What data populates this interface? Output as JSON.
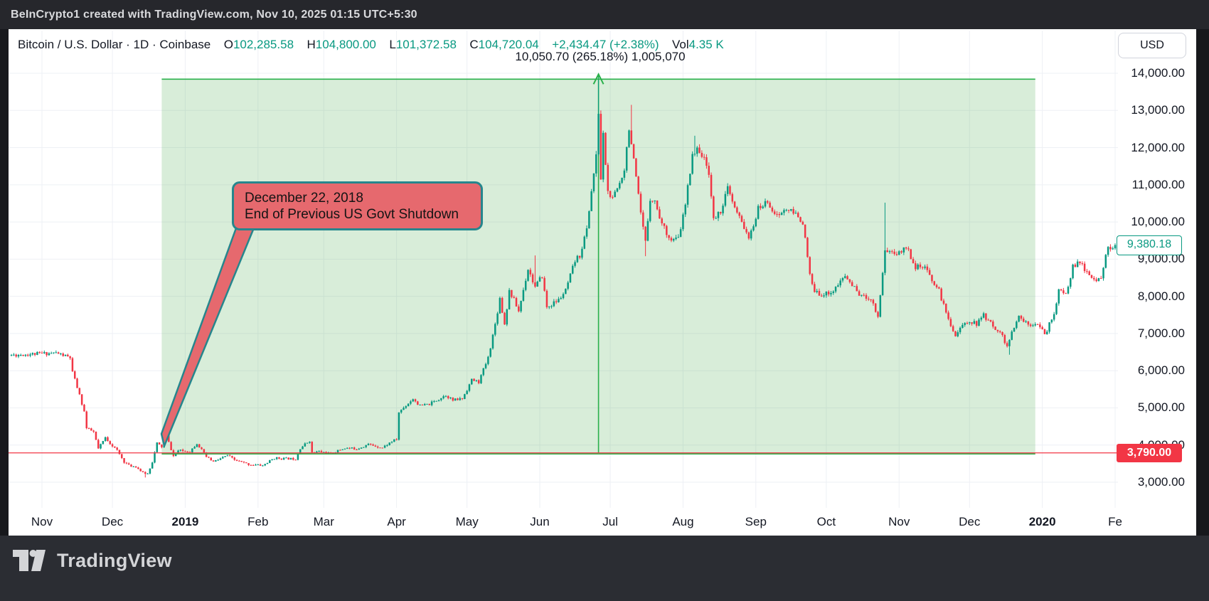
{
  "top_bar": {
    "attribution": "BeInCrypto1 created with TradingView.com, Nov 10, 2025 01:15 UTC+5:30"
  },
  "header": {
    "symbol": "Bitcoin / U.S. Dollar",
    "interval": "1D",
    "exchange": "Coinbase",
    "sep": "·",
    "o_label": "O",
    "o_value": "102,285.58",
    "h_label": "H",
    "h_value": "104,800.00",
    "l_label": "L",
    "l_value": "101,372.58",
    "c_label": "C",
    "c_value": "104,720.04",
    "change": "+2,434.47 (+2.38%)",
    "vol_label": "Vol",
    "vol_value": "4.35 K"
  },
  "measure_label": "10,050.70 (265.18%) 1,005,070",
  "currency_button": "USD",
  "callout": {
    "line1": "December 22, 2018",
    "line2": "End of Previous US Govt Shutdown"
  },
  "price_tags": {
    "current": "9,380.18",
    "anchor": "3,790.00"
  },
  "footer": {
    "brand": "TradingView"
  },
  "colors": {
    "up": "#089981",
    "down": "#f23645",
    "text": "#131722",
    "grid": "#eef0f5",
    "region_fill": "rgba(76,175,80,0.22)",
    "region_line": "#2ab04b",
    "callout_fill": "#e6696e",
    "callout_border": "#26868d"
  },
  "chart_data": {
    "type": "candlestick",
    "title": "Bitcoin / U.S. Dollar 1D Coinbase",
    "ylabel": "USD",
    "ylim": [
      2700,
      14200
    ],
    "grid": true,
    "start_date": "2018-10-19",
    "end_date": "2020-02-01",
    "last_price": 9380.18,
    "anchor_price": 3790,
    "measure_region": {
      "start_date": "2018-12-22",
      "end_date": "2019-12-29",
      "low": 3790,
      "high": 13840.7,
      "label": "10,050.70 (265.18%) 1,005,070"
    },
    "y_ticks": [
      {
        "price": 14000,
        "label": "14,000.00"
      },
      {
        "price": 13000,
        "label": "13,000.00"
      },
      {
        "price": 12000,
        "label": "12,000.00"
      },
      {
        "price": 11000,
        "label": "11,000.00"
      },
      {
        "price": 10000,
        "label": "10,000.00"
      },
      {
        "price": 9000,
        "label": "9,000.00"
      },
      {
        "price": 8000,
        "label": "8,000.00"
      },
      {
        "price": 7000,
        "label": "7,000.00"
      },
      {
        "price": 6000,
        "label": "6,000.00"
      },
      {
        "price": 5000,
        "label": "5,000.00"
      },
      {
        "price": 4000,
        "label": "4,000.00"
      },
      {
        "price": 3000,
        "label": "3,000.00"
      }
    ],
    "x_ticks": [
      {
        "date": "2018-11-01",
        "label": "Nov",
        "bold": false
      },
      {
        "date": "2018-12-01",
        "label": "Dec",
        "bold": false
      },
      {
        "date": "2019-01-01",
        "label": "2019",
        "bold": true
      },
      {
        "date": "2019-02-01",
        "label": "Feb",
        "bold": false
      },
      {
        "date": "2019-03-01",
        "label": "Mar",
        "bold": false
      },
      {
        "date": "2019-04-01",
        "label": "Apr",
        "bold": false
      },
      {
        "date": "2019-05-01",
        "label": "May",
        "bold": false
      },
      {
        "date": "2019-06-01",
        "label": "Jun",
        "bold": false
      },
      {
        "date": "2019-07-01",
        "label": "Jul",
        "bold": false
      },
      {
        "date": "2019-08-01",
        "label": "Aug",
        "bold": false
      },
      {
        "date": "2019-09-01",
        "label": "Sep",
        "bold": false
      },
      {
        "date": "2019-10-01",
        "label": "Oct",
        "bold": false
      },
      {
        "date": "2019-11-01",
        "label": "Nov",
        "bold": false
      },
      {
        "date": "2019-12-01",
        "label": "Dec",
        "bold": false
      },
      {
        "date": "2020-01-01",
        "label": "2020",
        "bold": true
      },
      {
        "date": "2020-02-01",
        "label": "Fe",
        "bold": false
      }
    ],
    "price_path": [
      [
        "2018-10-19",
        6420
      ],
      [
        "2018-11-07",
        6480
      ],
      [
        "2018-11-13",
        6350
      ],
      [
        "2018-11-14",
        5950
      ],
      [
        "2018-11-16",
        5550
      ],
      [
        "2018-11-19",
        4900
      ],
      [
        "2018-11-20",
        4450
      ],
      [
        "2018-11-23",
        4350
      ],
      [
        "2018-11-25",
        3900
      ],
      [
        "2018-11-28",
        4200
      ],
      [
        "2018-11-30",
        4050
      ],
      [
        "2018-12-03",
        3850
      ],
      [
        "2018-12-06",
        3550
      ],
      [
        "2018-12-08",
        3450
      ],
      [
        "2018-12-11",
        3420
      ],
      [
        "2018-12-14",
        3250
      ],
      [
        "2018-12-16",
        3230
      ],
      [
        "2018-12-18",
        3550
      ],
      [
        "2018-12-20",
        4050
      ],
      [
        "2018-12-22",
        3950
      ],
      [
        "2018-12-24",
        4250
      ],
      [
        "2018-12-27",
        3700
      ],
      [
        "2018-12-29",
        3850
      ],
      [
        "2019-01-03",
        3830
      ],
      [
        "2019-01-06",
        4050
      ],
      [
        "2019-01-10",
        3680
      ],
      [
        "2019-01-13",
        3550
      ],
      [
        "2019-01-19",
        3720
      ],
      [
        "2019-01-22",
        3600
      ],
      [
        "2019-01-28",
        3480
      ],
      [
        "2019-02-03",
        3450
      ],
      [
        "2019-02-08",
        3650
      ],
      [
        "2019-02-11",
        3640
      ],
      [
        "2019-02-17",
        3630
      ],
      [
        "2019-02-19",
        3920
      ],
      [
        "2019-02-23",
        4120
      ],
      [
        "2019-02-24",
        3790
      ],
      [
        "2019-02-27",
        3830
      ],
      [
        "2019-03-04",
        3770
      ],
      [
        "2019-03-10",
        3920
      ],
      [
        "2019-03-15",
        3900
      ],
      [
        "2019-03-20",
        4020
      ],
      [
        "2019-03-26",
        3930
      ],
      [
        "2019-03-30",
        4100
      ],
      [
        "2019-04-01",
        4150
      ],
      [
        "2019-04-02",
        4880
      ],
      [
        "2019-04-08",
        5250
      ],
      [
        "2019-04-11",
        5050
      ],
      [
        "2019-04-15",
        5100
      ],
      [
        "2019-04-22",
        5350
      ],
      [
        "2019-04-25",
        5200
      ],
      [
        "2019-04-29",
        5250
      ],
      [
        "2019-05-03",
        5750
      ],
      [
        "2019-05-06",
        5700
      ],
      [
        "2019-05-10",
        6350
      ],
      [
        "2019-05-13",
        7250
      ],
      [
        "2019-05-15",
        7950
      ],
      [
        "2019-05-17",
        7250
      ],
      [
        "2019-05-19",
        8150
      ],
      [
        "2019-05-21",
        7900
      ],
      [
        "2019-05-23",
        7600
      ],
      [
        "2019-05-27",
        8750
      ],
      [
        "2019-05-30",
        8250
      ],
      [
        "2019-06-02",
        8550
      ],
      [
        "2019-06-04",
        7700
      ],
      [
        "2019-06-09",
        7900
      ],
      [
        "2019-06-12",
        8150
      ],
      [
        "2019-06-16",
        8950
      ],
      [
        "2019-06-18",
        9100
      ],
      [
        "2019-06-21",
        9800
      ],
      [
        "2019-06-23",
        10850
      ],
      [
        "2019-06-25",
        11750
      ],
      [
        "2019-06-26",
        12950
      ],
      [
        "2019-06-27",
        11150
      ],
      [
        "2019-06-28",
        12350
      ],
      [
        "2019-06-30",
        10800
      ],
      [
        "2019-07-02",
        10600
      ],
      [
        "2019-07-05",
        11050
      ],
      [
        "2019-07-07",
        11450
      ],
      [
        "2019-07-09",
        12550
      ],
      [
        "2019-07-10",
        12100
      ],
      [
        "2019-07-14",
        10200
      ],
      [
        "2019-07-16",
        9450
      ],
      [
        "2019-07-18",
        10650
      ],
      [
        "2019-07-20",
        10550
      ],
      [
        "2019-07-23",
        9950
      ],
      [
        "2019-07-27",
        9500
      ],
      [
        "2019-07-30",
        9550
      ],
      [
        "2019-08-02",
        10450
      ],
      [
        "2019-08-05",
        11850
      ],
      [
        "2019-08-08",
        11950
      ],
      [
        "2019-08-12",
        11350
      ],
      [
        "2019-08-14",
        10050
      ],
      [
        "2019-08-17",
        10300
      ],
      [
        "2019-08-20",
        10900
      ],
      [
        "2019-08-23",
        10350
      ],
      [
        "2019-08-28",
        9750
      ],
      [
        "2019-08-29",
        9500
      ],
      [
        "2019-09-02",
        10350
      ],
      [
        "2019-09-06",
        10550
      ],
      [
        "2019-09-10",
        10150
      ],
      [
        "2019-09-14",
        10350
      ],
      [
        "2019-09-18",
        10200
      ],
      [
        "2019-09-21",
        10000
      ],
      [
        "2019-09-24",
        8550
      ],
      [
        "2019-09-26",
        8100
      ],
      [
        "2019-09-30",
        8050
      ],
      [
        "2019-10-04",
        8150
      ],
      [
        "2019-10-09",
        8550
      ],
      [
        "2019-10-12",
        8300
      ],
      [
        "2019-10-16",
        8000
      ],
      [
        "2019-10-20",
        7950
      ],
      [
        "2019-10-23",
        7450
      ],
      [
        "2019-10-25",
        8650
      ],
      [
        "2019-10-26",
        9250
      ],
      [
        "2019-10-28",
        9200
      ],
      [
        "2019-11-01",
        9150
      ],
      [
        "2019-11-04",
        9350
      ],
      [
        "2019-11-08",
        8800
      ],
      [
        "2019-11-12",
        8750
      ],
      [
        "2019-11-15",
        8450
      ],
      [
        "2019-11-18",
        8150
      ],
      [
        "2019-11-21",
        7550
      ],
      [
        "2019-11-25",
        6950
      ],
      [
        "2019-11-27",
        7150
      ],
      [
        "2019-12-01",
        7350
      ],
      [
        "2019-12-04",
        7250
      ],
      [
        "2019-12-07",
        7500
      ],
      [
        "2019-12-11",
        7200
      ],
      [
        "2019-12-14",
        7050
      ],
      [
        "2019-12-17",
        6650
      ],
      [
        "2019-12-18",
        6850
      ],
      [
        "2019-12-22",
        7450
      ],
      [
        "2019-12-26",
        7250
      ],
      [
        "2019-12-30",
        7300
      ],
      [
        "2020-01-02",
        6950
      ],
      [
        "2020-01-06",
        7550
      ],
      [
        "2020-01-08",
        8150
      ],
      [
        "2020-01-11",
        8050
      ],
      [
        "2020-01-14",
        8800
      ],
      [
        "2020-01-17",
        8900
      ],
      [
        "2020-01-20",
        8650
      ],
      [
        "2020-01-23",
        8400
      ],
      [
        "2020-01-26",
        8550
      ],
      [
        "2020-01-29",
        9300
      ],
      [
        "2020-01-31",
        9350
      ],
      [
        "2020-02-01",
        9380
      ]
    ],
    "wick_highs": {
      "2019-06-26": 13880,
      "2019-07-10": 13150,
      "2019-08-06": 12320,
      "2019-10-26": 10520,
      "2019-05-30": 9100
    },
    "wick_lows": {
      "2018-12-15": 3128,
      "2019-07-16": 9080,
      "2019-12-18": 6430
    }
  }
}
